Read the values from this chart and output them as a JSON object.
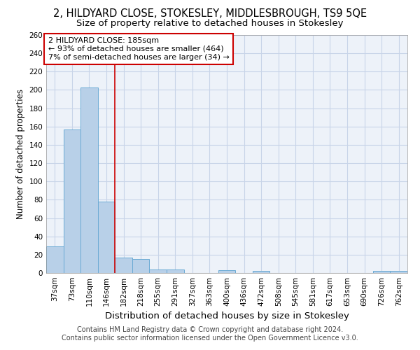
{
  "title": "2, HILDYARD CLOSE, STOKESLEY, MIDDLESBROUGH, TS9 5QE",
  "subtitle": "Size of property relative to detached houses in Stokesley",
  "xlabel": "Distribution of detached houses by size in Stokesley",
  "ylabel": "Number of detached properties",
  "bar_labels": [
    "37sqm",
    "73sqm",
    "110sqm",
    "146sqm",
    "182sqm",
    "218sqm",
    "255sqm",
    "291sqm",
    "327sqm",
    "363sqm",
    "400sqm",
    "436sqm",
    "472sqm",
    "508sqm",
    "545sqm",
    "581sqm",
    "617sqm",
    "653sqm",
    "690sqm",
    "726sqm",
    "762sqm"
  ],
  "bar_values": [
    29,
    157,
    203,
    78,
    17,
    15,
    4,
    4,
    0,
    0,
    3,
    0,
    2,
    0,
    0,
    0,
    0,
    0,
    0,
    2,
    2
  ],
  "bar_color": "#b8d0e8",
  "bar_edge_color": "#6aaad4",
  "grid_color": "#c8d4e8",
  "background_color": "#edf2f9",
  "vline_x_index": 4,
  "vline_color": "#cc0000",
  "annotation_line1": "2 HILDYARD CLOSE: 185sqm",
  "annotation_line2": "← 93% of detached houses are smaller (464)",
  "annotation_line3": "7% of semi-detached houses are larger (34) →",
  "annotation_box_color": "#cc0000",
  "ylim": [
    0,
    260
  ],
  "yticks": [
    0,
    20,
    40,
    60,
    80,
    100,
    120,
    140,
    160,
    180,
    200,
    220,
    240,
    260
  ],
  "footer": "Contains HM Land Registry data © Crown copyright and database right 2024.\nContains public sector information licensed under the Open Government Licence v3.0.",
  "title_fontsize": 10.5,
  "subtitle_fontsize": 9.5,
  "xlabel_fontsize": 9.5,
  "ylabel_fontsize": 8.5,
  "tick_fontsize": 7.5,
  "annotation_fontsize": 8,
  "footer_fontsize": 7
}
